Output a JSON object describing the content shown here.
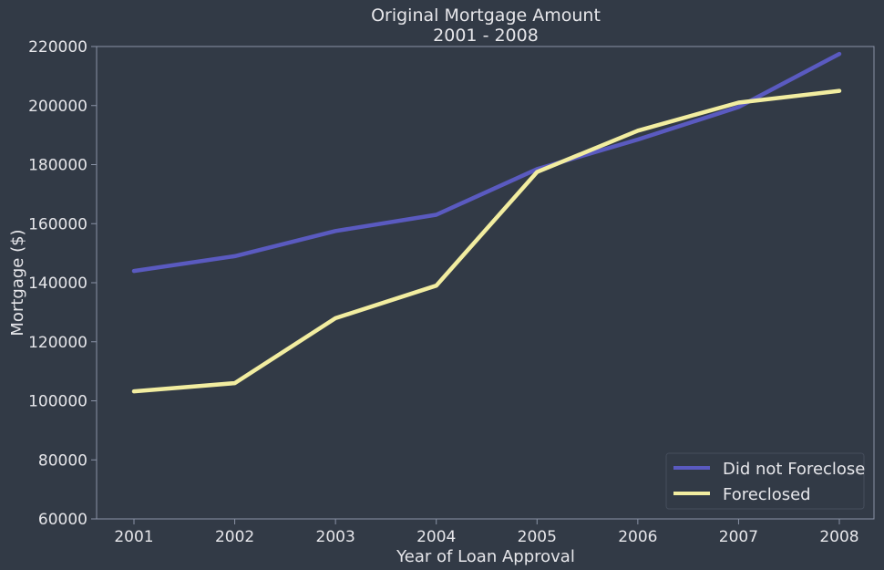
{
  "chart_data": {
    "type": "line",
    "title": "Original Mortgage Amount",
    "subtitle": "2001 - 2008",
    "xlabel": "Year of Loan Approval",
    "ylabel": "Mortgage ($)",
    "x": [
      "2001",
      "2002",
      "2003",
      "2004",
      "2005",
      "2006",
      "2007",
      "2008"
    ],
    "ylim": [
      60000,
      220000
    ],
    "yticks": [
      60000,
      80000,
      100000,
      120000,
      140000,
      160000,
      180000,
      200000,
      220000
    ],
    "grid": false,
    "legend_position": "bottom-right",
    "series": [
      {
        "name": "Did not Foreclose",
        "color": "#5a5ac0",
        "values": [
          144000,
          149000,
          157500,
          163000,
          178500,
          188500,
          199500,
          217500
        ]
      },
      {
        "name": "Foreclosed",
        "color": "#f2eda0",
        "values": [
          103200,
          106000,
          128000,
          139000,
          177500,
          191500,
          201000,
          205000
        ]
      }
    ],
    "colors": {
      "background": "#323a46",
      "axis": "#8a93a6",
      "text": "#e6e6ea"
    }
  }
}
